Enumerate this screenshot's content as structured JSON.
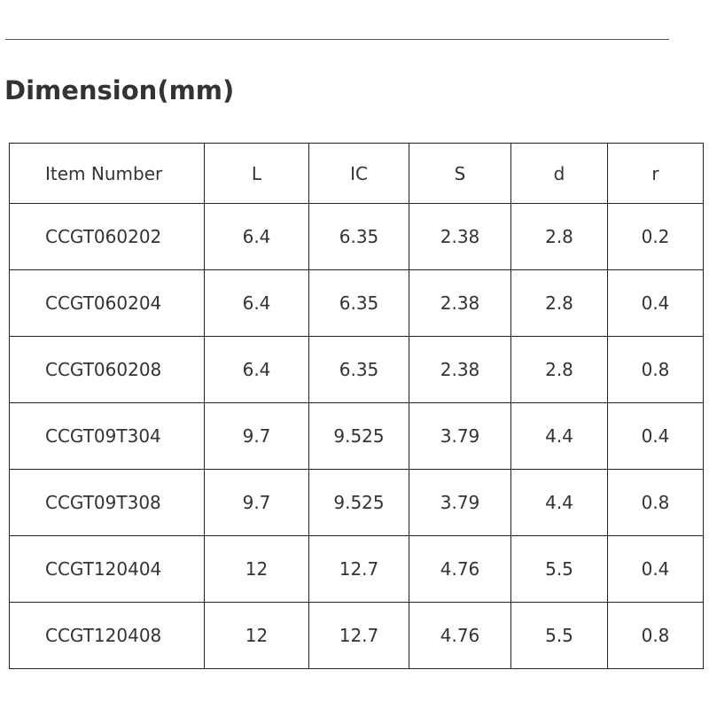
{
  "title": "Dimension(mm)",
  "table": {
    "headers": [
      "Item Number",
      "L",
      "IC",
      "S",
      "d",
      "r"
    ],
    "rows": [
      [
        "CCGT060202",
        "6.4",
        "6.35",
        "2.38",
        "2.8",
        "0.2"
      ],
      [
        "CCGT060204",
        "6.4",
        "6.35",
        "2.38",
        "2.8",
        "0.4"
      ],
      [
        "CCGT060208",
        "6.4",
        "6.35",
        "2.38",
        "2.8",
        "0.8"
      ],
      [
        "CCGT09T304",
        "9.7",
        "9.525",
        "3.79",
        "4.4",
        "0.4"
      ],
      [
        "CCGT09T308",
        "9.7",
        "9.525",
        "3.79",
        "4.4",
        "0.8"
      ],
      [
        "CCGT120404",
        "12",
        "12.7",
        "4.76",
        "5.5",
        "0.4"
      ],
      [
        "CCGT120408",
        "12",
        "12.7",
        "4.76",
        "5.5",
        "0.8"
      ]
    ]
  }
}
